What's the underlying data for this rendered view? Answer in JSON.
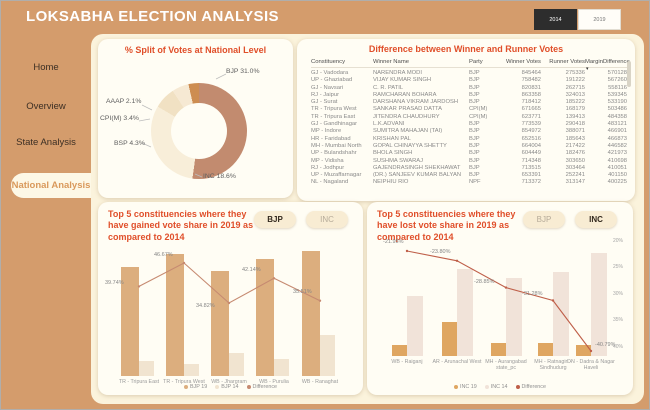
{
  "window": {
    "title": "LOKSABHA ELECTION ANALYSIS"
  },
  "year_buttons": [
    {
      "label": "2014",
      "active": true
    },
    {
      "label": "2019",
      "active": false
    }
  ],
  "sidebar": {
    "items": [
      {
        "label": "Home",
        "active": false
      },
      {
        "label": "Overview",
        "active": false
      },
      {
        "label": "State Analysis",
        "active": false
      },
      {
        "label": "National Analysis",
        "active": true
      }
    ]
  },
  "colors": {
    "chrome_tan": "#d49c6c",
    "panel_cream": "#fbf3dc",
    "card_cream": "#fffdf4",
    "title_orange": "#e04f2a",
    "active_nav_text": "#d9995b"
  },
  "table": {
    "title": "Difference between Winner and Runner Votes",
    "columns": [
      "Constituency",
      "Winner Name",
      "Party",
      "Winner Votes",
      "Runner Votes",
      "MarginDifference"
    ],
    "sorted_by": "MarginDifference",
    "rows": [
      [
        "GJ - Vadodara",
        "NARENDRA MODI",
        "BJP",
        "845464",
        "275336",
        "570128"
      ],
      [
        "UP - Ghaziabad",
        "VIJAY KUMAR SINGH",
        "BJP",
        "758482",
        "191222",
        "567260"
      ],
      [
        "GJ - Navsari",
        "C. R. PATIL",
        "BJP",
        "820831",
        "262715",
        "558116"
      ],
      [
        "RJ - Jaipur",
        "RAMCHARAN BOHARA",
        "BJP",
        "863358",
        "324013",
        "539345"
      ],
      [
        "GJ - Surat",
        "DARSHANA VIKRAM JARDOSH",
        "BJP",
        "718412",
        "185222",
        "533190"
      ],
      [
        "TR - Tripura West",
        "SANKAR PRASAD DATTA",
        "CPI(M)",
        "671665",
        "168179",
        "503486"
      ],
      [
        "TR - Tripura East",
        "JITENDRA CHAUDHURY",
        "CPI(M)",
        "623771",
        "139413",
        "484358"
      ],
      [
        "GJ - Gandhinagar",
        "L.K.ADVANI",
        "BJP",
        "773539",
        "290418",
        "483121"
      ],
      [
        "MP - Indore",
        "SUMITRA MAHAJAN (TAI)",
        "BJP",
        "854972",
        "388071",
        "466901"
      ],
      [
        "HR - Faridabad",
        "KRISHAN PAL",
        "BJP",
        "652516",
        "185643",
        "466873"
      ],
      [
        "MH - Mumbai North",
        "GOPAL CHINAYYA SHETTY",
        "BJP",
        "664004",
        "217422",
        "446582"
      ],
      [
        "UP - Bulandshahr",
        "BHOLA SINGH",
        "BJP",
        "604449",
        "182476",
        "421973"
      ],
      [
        "MP - Vidisha",
        "SUSHMA SWARAJ",
        "BJP",
        "714348",
        "303650",
        "410698"
      ],
      [
        "RJ - Jodhpur",
        "GAJENDRASINGH SHEKHAWAT",
        "BJP",
        "713515",
        "303464",
        "410051"
      ],
      [
        "UP - Muzaffarnagar",
        "(DR.) SANJEEV KUMAR BALYAN",
        "BJP",
        "653391",
        "252241",
        "401150"
      ],
      [
        "NL - Nagaland",
        "NEIPHIU RIO",
        "NPF",
        "713372",
        "313147",
        "400225"
      ]
    ]
  },
  "chart_data": [
    {
      "type": "pie",
      "subtype": "donut",
      "title": "% Split of Votes at National Level",
      "segments": [
        {
          "label": "BJP",
          "pct": 31.0,
          "color": "#c28b6f"
        },
        {
          "label": "INC",
          "pct": 18.6,
          "color": "#f8eed9"
        },
        {
          "label": "BSP",
          "pct": 4.3,
          "color": "#f1e1c3"
        },
        {
          "label": "CPI(M)",
          "pct": 3.4,
          "color": "#f6e9d3"
        },
        {
          "label": "AAAP",
          "pct": 2.1,
          "color": "#cd8d51"
        }
      ],
      "callouts": [
        "BJP 31.0%",
        "AAAP 2.1%",
        "CPI(M) 3.4%",
        "BSP 4.3%",
        "INC 18.6%"
      ]
    },
    {
      "type": "bar",
      "title": "Top 5 constituencies where they have gained vote share in 2019 as compared to 2014",
      "buttons": [
        {
          "label": "BJP",
          "active": true
        },
        {
          "label": "INC",
          "active": false
        }
      ],
      "categories": [
        "TR - Tripura East",
        "TR - Tripura West",
        "WB - Jhargram",
        "WB - Purulia",
        "WB - Ranaghat"
      ],
      "series": [
        {
          "name": "BJP 19",
          "values": [
            46.1,
            51.8,
            44.6,
            49.3,
            52.8
          ],
          "color": "#dcae7e"
        },
        {
          "name": "BJP 14",
          "values": [
            6.3,
            5.1,
            9.8,
            7.2,
            17.3
          ],
          "color": "#f1e4d0"
        }
      ],
      "line": {
        "name": "Difference",
        "values": [
          39.74,
          46.67,
          34.82,
          42.14,
          35.51
        ],
        "labels": [
          "39.74%",
          "46.67%",
          "34.82%",
          "42.14%",
          "35.51%"
        ],
        "color": "#c68a71"
      },
      "legend": [
        "BJP 19",
        "BJP 14",
        "Difference"
      ],
      "ylim": [
        0,
        55
      ],
      "grid": false,
      "legend_position": "bottom"
    },
    {
      "type": "bar",
      "title": "Top 5 constituencies where they have lost vote share in 2019 as compared to 2014",
      "buttons": [
        {
          "label": "BJP",
          "active": false
        },
        {
          "label": "INC",
          "active": true
        }
      ],
      "categories": [
        "WB - Raiganj",
        "AR - Arunachal West",
        "MH - Aurangabad state_pc",
        "MH - Ratnagiri - Sindhudurg",
        "DN - Dadra & Nagar Haveli"
      ],
      "series": [
        {
          "name": "INC 19",
          "values": [
            5.1,
            15.0,
            6.0,
            6.0,
            5.0
          ],
          "color": "#dfa661"
        },
        {
          "name": "INC 14",
          "values": [
            27.0,
            38.8,
            34.9,
            37.3,
            45.8
          ],
          "color": "#f1e3d9"
        }
      ],
      "line": {
        "name": "Difference",
        "values": [
          -21.95,
          -23.8,
          -28.85,
          -31.28,
          -40.79
        ],
        "labels": [
          "-21.95%",
          "-23.80%",
          "-28.85%",
          "-31.28%",
          "-40.79%"
        ],
        "color": "#bf5f49"
      },
      "right_axis": [
        "20%",
        "25%",
        "30%",
        "35%",
        "40%"
      ],
      "legend": [
        "INC 19",
        "INC 14",
        "Difference"
      ],
      "ylim": [
        0,
        50
      ],
      "grid": false,
      "legend_position": "bottom"
    }
  ]
}
